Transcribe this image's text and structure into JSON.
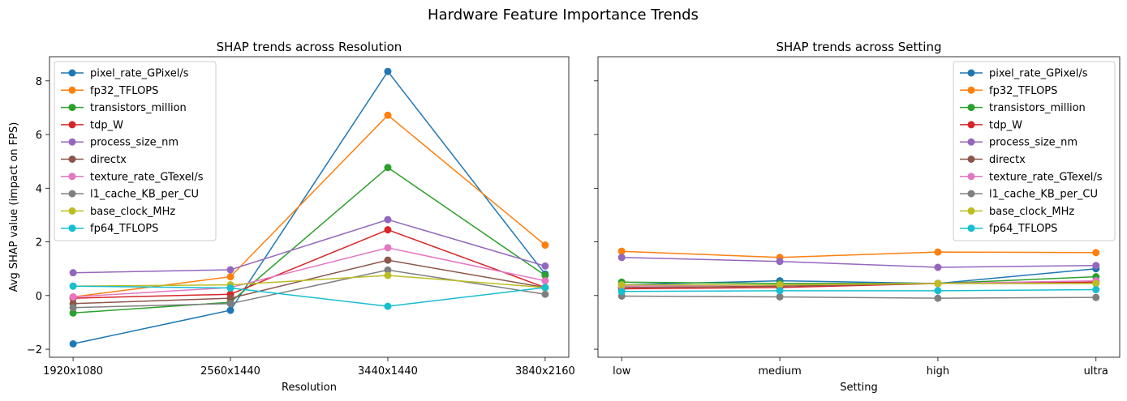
{
  "figure": {
    "suptitle": "Hardware Feature Importance Trends",
    "shared_ylabel": "Avg SHAP value (impact on FPS)"
  },
  "chart_data": [
    {
      "type": "line",
      "title": "SHAP trends across Resolution",
      "xlabel": "Resolution",
      "ylabel": "Avg SHAP value (impact on FPS)",
      "categories": [
        "1920x1080",
        "2560x1440",
        "3440x1440",
        "3840x2160"
      ],
      "ylim": [
        -2.3,
        8.9
      ],
      "yticks": [
        -2,
        0,
        2,
        4,
        6,
        8
      ],
      "legend": "upper-left",
      "grid": false,
      "series": [
        {
          "name": "pixel_rate_GPixel/s",
          "color": "#1f77b4",
          "values": [
            -1.8,
            -0.55,
            8.35,
            0.8
          ]
        },
        {
          "name": "fp32_TFLOPS",
          "color": "#ff7f0e",
          "values": [
            -0.05,
            0.7,
            6.72,
            1.88
          ]
        },
        {
          "name": "transistors_million",
          "color": "#2ca02c",
          "values": [
            -0.65,
            -0.25,
            4.77,
            0.75
          ]
        },
        {
          "name": "tdp_W",
          "color": "#d62728",
          "values": [
            -0.1,
            0.05,
            2.45,
            0.3
          ]
        },
        {
          "name": "process_size_nm",
          "color": "#9467bd",
          "values": [
            0.85,
            0.96,
            2.83,
            1.1
          ]
        },
        {
          "name": "directx",
          "color": "#8c564b",
          "values": [
            -0.3,
            -0.1,
            1.32,
            0.3
          ]
        },
        {
          "name": "texture_rate_GTexel/s",
          "color": "#e377c2",
          "values": [
            -0.05,
            0.3,
            1.78,
            0.55
          ]
        },
        {
          "name": "l1_cache_KB_per_CU",
          "color": "#7f7f7f",
          "values": [
            -0.45,
            -0.3,
            0.95,
            0.05
          ]
        },
        {
          "name": "base_clock_MHz",
          "color": "#bcbd22",
          "values": [
            0.35,
            0.4,
            0.75,
            0.3
          ]
        },
        {
          "name": "fp64_TFLOPS",
          "color": "#17becf",
          "values": [
            0.35,
            0.28,
            -0.4,
            0.3
          ]
        }
      ]
    },
    {
      "type": "line",
      "title": "SHAP trends across Setting",
      "xlabel": "Setting",
      "ylabel": "",
      "categories": [
        "low",
        "medium",
        "high",
        "ultra"
      ],
      "ylim": [
        -2.3,
        8.9
      ],
      "yticks": [
        -2,
        0,
        2,
        4,
        6,
        8
      ],
      "legend": "upper-right",
      "grid": false,
      "series": [
        {
          "name": "pixel_rate_GPixel/s",
          "color": "#1f77b4",
          "values": [
            0.4,
            0.55,
            0.45,
            1.0
          ]
        },
        {
          "name": "fp32_TFLOPS",
          "color": "#ff7f0e",
          "values": [
            1.65,
            1.42,
            1.62,
            1.6
          ]
        },
        {
          "name": "transistors_million",
          "color": "#2ca02c",
          "values": [
            0.5,
            0.45,
            0.45,
            0.7
          ]
        },
        {
          "name": "tdp_W",
          "color": "#d62728",
          "values": [
            0.25,
            0.3,
            0.45,
            0.5
          ]
        },
        {
          "name": "process_size_nm",
          "color": "#9467bd",
          "values": [
            1.42,
            1.27,
            1.05,
            1.12
          ]
        },
        {
          "name": "directx",
          "color": "#8c564b",
          "values": [
            0.3,
            0.35,
            0.45,
            0.45
          ]
        },
        {
          "name": "texture_rate_GTexel/s",
          "color": "#e377c2",
          "values": [
            0.35,
            0.4,
            0.45,
            0.55
          ]
        },
        {
          "name": "l1_cache_KB_per_CU",
          "color": "#7f7f7f",
          "values": [
            -0.02,
            -0.05,
            -0.1,
            -0.07
          ]
        },
        {
          "name": "base_clock_MHz",
          "color": "#bcbd22",
          "values": [
            0.4,
            0.4,
            0.45,
            0.45
          ]
        },
        {
          "name": "fp64_TFLOPS",
          "color": "#17becf",
          "values": [
            0.15,
            0.18,
            0.18,
            0.22
          ]
        }
      ]
    }
  ]
}
